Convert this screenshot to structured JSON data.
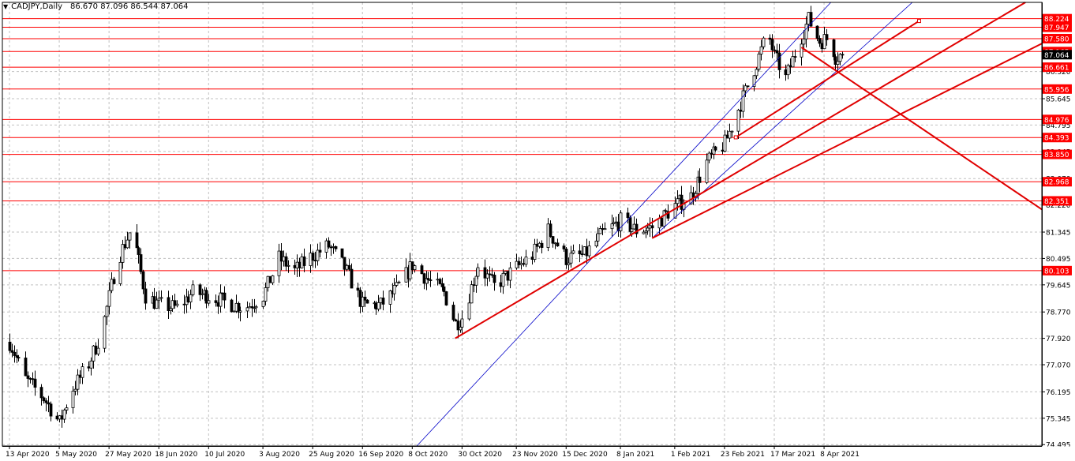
{
  "header": {
    "symbol_timeframe": "CADJPY,Daily",
    "ohlc": "86.670 87.096 86.544 87.064",
    "dropdown_icon": "triangle-down-icon"
  },
  "colors": {
    "background": "#ffffff",
    "grid": "#c0c0c0",
    "candle": "#000000",
    "level_line": "#ff0000",
    "trend_line": "#e00000",
    "channel_line": "#0000c8",
    "level_label_bg": "#ff0000",
    "level_label_text": "#ffffff",
    "current_price_label_bg": "#000000"
  },
  "chart_data": {
    "type": "candlestick",
    "symbol": "CADJPY",
    "timeframe": "Daily",
    "x_tick_labels": [
      "13 Apr 2020",
      "5 May 2020",
      "27 May 2020",
      "18 Jun 2020",
      "10 Jul 2020",
      "3 Aug 2020",
      "25 Aug 2020",
      "16 Sep 2020",
      "8 Oct 2020",
      "30 Oct 2020",
      "23 Nov 2020",
      "15 Dec 2020",
      "8 Jan 2021",
      "1 Feb 2021",
      "23 Feb 2021",
      "17 Mar 2021",
      "8 Apr 2021"
    ],
    "y_tick_labels": [
      "86.520",
      "85.645",
      "84.795",
      "83.945",
      "83.070",
      "82.220",
      "81.345",
      "80.495",
      "79.645",
      "78.770",
      "77.920",
      "77.070",
      "76.195",
      "75.345",
      "74.495"
    ],
    "ylim": [
      74.45,
      88.75
    ],
    "current_price": 87.064,
    "current_price_label": "87.064",
    "horizontal_levels": [
      88.224,
      87.947,
      87.58,
      87.165,
      86.661,
      85.956,
      84.976,
      84.393,
      83.85,
      82.968,
      82.351,
      80.103
    ],
    "horizontal_level_labels": [
      "88.224",
      "87.947",
      "87.580",
      "87.165",
      "86.661",
      "85.956",
      "84.976",
      "84.393",
      "83.850",
      "82.968",
      "82.351",
      "80.103"
    ],
    "price_path_keypoints": [
      {
        "date": "13 Apr 2020",
        "price": 77.8
      },
      {
        "date": "20 Apr 2020",
        "price": 76.6
      },
      {
        "date": "28 Apr 2020",
        "price": 76.0
      },
      {
        "date": "5 May 2020",
        "price": 75.2
      },
      {
        "date": "10 May 2020",
        "price": 76.2
      },
      {
        "date": "18 May 2020",
        "price": 77.1
      },
      {
        "date": "24 May 2020",
        "price": 78.2
      },
      {
        "date": "30 May 2020",
        "price": 80.3
      },
      {
        "date": "6 Jun 2020",
        "price": 81.5
      },
      {
        "date": "12 Jun 2020",
        "price": 79.3
      },
      {
        "date": "18 Jun 2020",
        "price": 79.0
      },
      {
        "date": "26 Jun 2020",
        "price": 78.9
      },
      {
        "date": "3 Jul 2020",
        "price": 79.4
      },
      {
        "date": "10 Jul 2020",
        "price": 79.3
      },
      {
        "date": "17 Jul 2020",
        "price": 79.1
      },
      {
        "date": "26 Jul 2020",
        "price": 78.9
      },
      {
        "date": "3 Aug 2020",
        "price": 79.3
      },
      {
        "date": "10 Aug 2020",
        "price": 80.5
      },
      {
        "date": "17 Aug 2020",
        "price": 80.1
      },
      {
        "date": "25 Aug 2020",
        "price": 80.6
      },
      {
        "date": "1 Sep 2020",
        "price": 80.9
      },
      {
        "date": "8 Sep 2020",
        "price": 80.2
      },
      {
        "date": "16 Sep 2020",
        "price": 79.0
      },
      {
        "date": "24 Sep 2020",
        "price": 79.0
      },
      {
        "date": "1 Oct 2020",
        "price": 79.5
      },
      {
        "date": "8 Oct 2020",
        "price": 80.3
      },
      {
        "date": "15 Oct 2020",
        "price": 79.8
      },
      {
        "date": "22 Oct 2020",
        "price": 79.4
      },
      {
        "date": "27 Oct 2020",
        "price": 78.4
      },
      {
        "date": "30 Oct 2020",
        "price": 78.6
      },
      {
        "date": "6 Nov 2020",
        "price": 80.3
      },
      {
        "date": "13 Nov 2020",
        "price": 79.6
      },
      {
        "date": "23 Nov 2020",
        "price": 80.2
      },
      {
        "date": "30 Nov 2020",
        "price": 80.6
      },
      {
        "date": "7 Dec 2020",
        "price": 81.4
      },
      {
        "date": "15 Dec 2020",
        "price": 80.5
      },
      {
        "date": "23 Dec 2020",
        "price": 80.6
      },
      {
        "date": "31 Dec 2020",
        "price": 81.3
      },
      {
        "date": "8 Jan 2021",
        "price": 81.7
      },
      {
        "date": "15 Jan 2021",
        "price": 81.4
      },
      {
        "date": "22 Jan 2021",
        "price": 81.5
      },
      {
        "date": "1 Feb 2021",
        "price": 82.2
      },
      {
        "date": "8 Feb 2021",
        "price": 82.5
      },
      {
        "date": "15 Feb 2021",
        "price": 83.6
      },
      {
        "date": "23 Feb 2021",
        "price": 84.2
      },
      {
        "date": "2 Mar 2021",
        "price": 85.5
      },
      {
        "date": "9 Mar 2021",
        "price": 86.8
      },
      {
        "date": "14 Mar 2021",
        "price": 87.8
      },
      {
        "date": "17 Mar 2021",
        "price": 87.0
      },
      {
        "date": "22 Mar 2021",
        "price": 86.3
      },
      {
        "date": "27 Mar 2021",
        "price": 87.3
      },
      {
        "date": "1 Apr 2021",
        "price": 88.2
      },
      {
        "date": "6 Apr 2021",
        "price": 87.5
      },
      {
        "date": "10 Apr 2021",
        "price": 87.6
      },
      {
        "date": "13 Apr 2021",
        "price": 87.0
      },
      {
        "date": "16 Apr 2021",
        "price": 87.064
      }
    ],
    "trend_lines": [
      {
        "kind": "support",
        "start": {
          "date": "27 Oct 2020",
          "price": 77.92
        },
        "end": {
          "date": "6 Jul 2021",
          "price": 88.75
        }
      },
      {
        "kind": "support",
        "start": {
          "date": "22 Jan 2021",
          "price": 81.15
        },
        "end": {
          "date": "25 Jul 2021",
          "price": 87.85
        }
      },
      {
        "kind": "resistance",
        "start": {
          "date": "29 Mar 2021",
          "price": 87.3
        },
        "end": {
          "date": "28 Jul 2021",
          "price": 81.35
        }
      },
      {
        "kind": "ray",
        "start": {
          "date": "28 Feb 2021",
          "price": 84.4
        },
        "end": {
          "date": "20 May 2021",
          "price": 88.15
        }
      }
    ],
    "channel_lines": [
      {
        "start": {
          "date": "10 Oct 2020",
          "price": 74.45
        },
        "end": {
          "date": "11 Apr 2021",
          "price": 88.75
        }
      },
      {
        "start": {
          "date": "22 Jan 2021",
          "price": 81.15
        },
        "end": {
          "date": "17 May 2021",
          "price": 88.75
        }
      }
    ],
    "grid": true
  }
}
